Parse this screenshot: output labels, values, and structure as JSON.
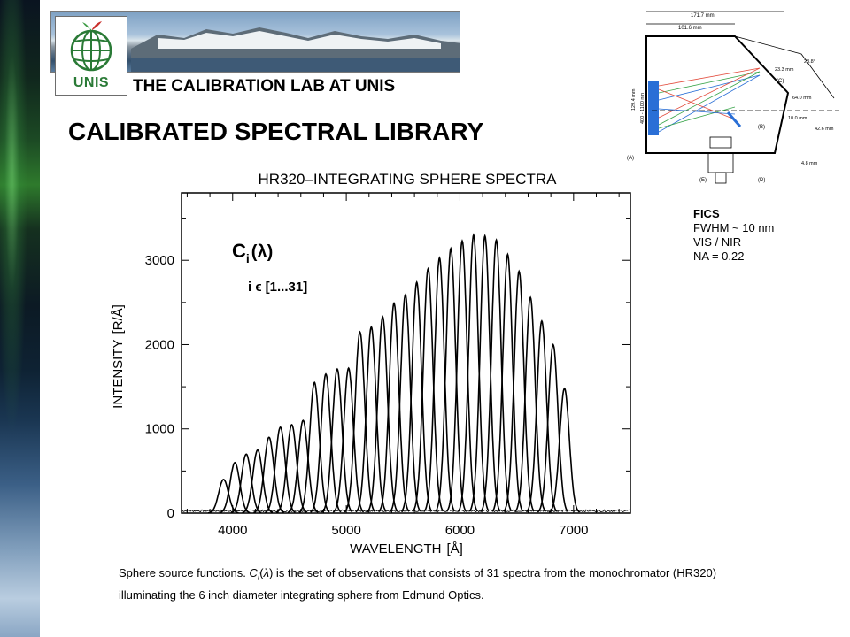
{
  "header": {
    "logo_text": "UNIS",
    "lab_title": "THE CALIBRATION LAB AT UNIS",
    "page_title": "CALIBRATED SPECTRAL LIBRARY"
  },
  "schematic": {
    "dimensions": [
      "171.7 mm",
      "101.6 mm",
      "23.3 mm",
      "28.8°",
      "64.0 mm",
      "10.0 mm",
      "42.6 mm",
      "4.8 mm",
      "129.4 mm",
      "400 - 1100 nm"
    ],
    "part_labels": [
      "(A)",
      "(B)",
      "(C)",
      "(D)",
      "(E)"
    ]
  },
  "fics": {
    "title": "FICS",
    "lines": [
      "FWHM ~ 10 nm",
      "VIS / NIR",
      "NA = 0.22"
    ]
  },
  "chart_data": {
    "type": "line",
    "title": "HR320–INTEGRATING SPHERE SPECTRA",
    "xlabel": "WAVELENGTH",
    "xlabel_unit": "[Å]",
    "ylabel": "INTENSITY",
    "ylabel_unit": "[R/Å]",
    "xlim": [
      3550,
      7500
    ],
    "ylim": [
      0,
      3800
    ],
    "xticks": [
      4000,
      5000,
      6000,
      7000
    ],
    "yticks": [
      0,
      1000,
      2000,
      3000
    ],
    "grid": false,
    "annotation_main": "C",
    "annotation_sub": "i",
    "annotation_arg": "(λ)",
    "annotation_range": "i ϵ [1...31]",
    "series_count": 31,
    "peaks_center": [
      3920,
      4020,
      4120,
      4220,
      4320,
      4420,
      4520,
      4620,
      4720,
      4820,
      4920,
      5020,
      5120,
      5220,
      5320,
      5420,
      5520,
      5620,
      5720,
      5820,
      5920,
      6020,
      6120,
      6220,
      6320,
      6420,
      6520,
      6620,
      6720,
      6820,
      6920
    ],
    "peaks_height": [
      400,
      600,
      700,
      750,
      900,
      1020,
      1050,
      1100,
      1550,
      1650,
      1710,
      1720,
      2150,
      2210,
      2330,
      2490,
      2590,
      2740,
      2900,
      3030,
      3140,
      3230,
      3300,
      3290,
      3240,
      3070,
      2870,
      2560,
      2280,
      2000,
      1480
    ],
    "peak_fwhm": 100
  },
  "caption": {
    "pre": "Sphere source functions. ",
    "symbol_main": "C",
    "symbol_sub": "i",
    "symbol_arg": "(",
    "symbol_lambda": "λ",
    "symbol_close": ")",
    "post": " is the set of observations that consists of 31 spectra from the monochromator (HR320) illuminating the 6 inch diameter integrating sphere from Edmund Optics."
  }
}
